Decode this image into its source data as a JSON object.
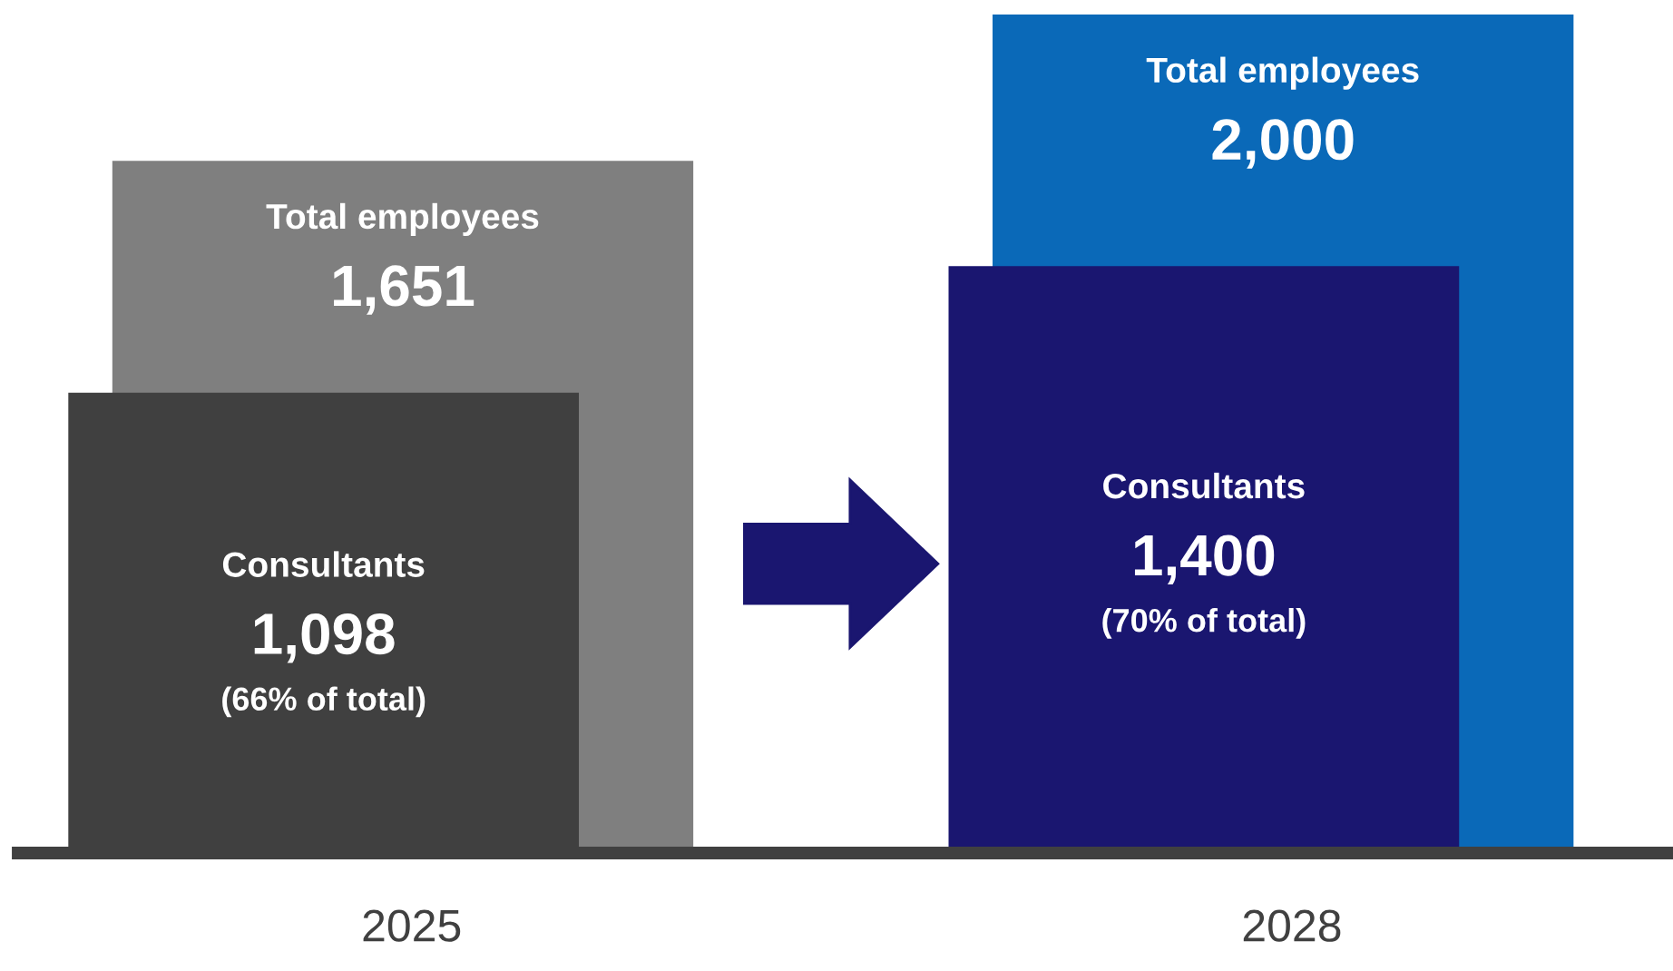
{
  "chart_data": {
    "type": "bar",
    "categories": [
      "2025",
      "2028"
    ],
    "series": [
      {
        "name": "Total employees",
        "colors": [
          "#7f7f7f",
          "#0a69b8"
        ],
        "values": [
          1651,
          2000
        ],
        "value_labels": [
          "1,651",
          "2,000"
        ]
      },
      {
        "name": "Consultants",
        "colors": [
          "#404040",
          "#1a1670"
        ],
        "values": [
          1098,
          1400
        ],
        "value_labels": [
          "1,098\n(66% of total)",
          "1,400\n(70% of total)"
        ]
      }
    ],
    "legend": false
  }
}
